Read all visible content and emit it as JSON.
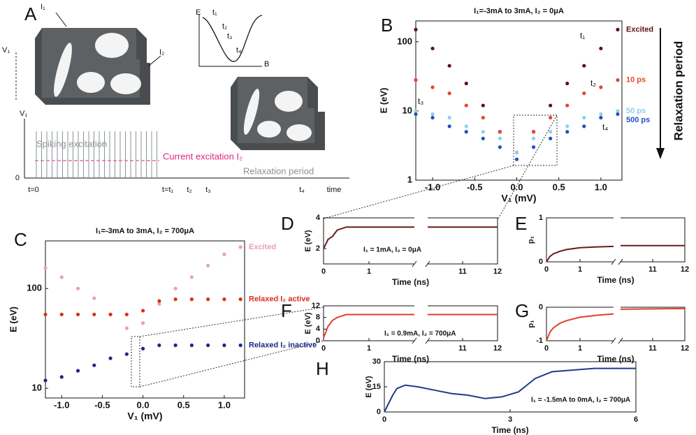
{
  "figure": {
    "panels": [
      "A",
      "B",
      "C",
      "D",
      "E",
      "F",
      "G",
      "H"
    ],
    "panel_a": {
      "current_1": "I₁",
      "current_2": "I₂",
      "voltage": "V₁",
      "energy_axis": "E",
      "field_axis": "B",
      "energy_times": [
        "t₁",
        "t₂",
        "t₃",
        "t₄"
      ],
      "spiking": "Spiking excitation",
      "current_excitation": "Current excitation I₂",
      "relaxation": "Relaxation period",
      "trace_axis": "V₁",
      "trace_zero": "0",
      "time_marks": [
        "t=0",
        "t=t₁",
        "t₂",
        "t₃",
        "t₄"
      ],
      "time_label": "time"
    }
  },
  "chart_data": [
    {
      "type": "scatter",
      "title": "I₁=-3mA to 3mA, I₂ = 0μA",
      "xlabel": "V₁ (mV)",
      "ylabel": "E (eV)",
      "log_y": true,
      "xlim": [
        -1.2,
        1.25
      ],
      "ylim": [
        1,
        200
      ],
      "xticks": [
        {
          "value": -1,
          "label": "-1.0"
        },
        -0.5,
        {
          "value": 0,
          "label": "0.0"
        },
        0.5,
        {
          "value": 1,
          "label": "1.0"
        }
      ],
      "yticks": [
        1,
        10,
        100
      ],
      "annotations": [
        "t₁",
        "t₂",
        "t₃",
        "t₄"
      ],
      "side_label": "Relaxation period",
      "x": [
        -1.2,
        -1.0,
        -0.8,
        -0.6,
        -0.4,
        -0.2,
        0,
        0.2,
        0.4,
        0.6,
        0.8,
        1.0,
        1.2
      ],
      "series": [
        {
          "name": "Excited",
          "color": "#5a1414",
          "values": [
            150,
            80,
            45,
            25,
            12,
            5,
            2.5,
            5,
            12,
            25,
            45,
            80,
            150
          ]
        },
        {
          "name": "10 ps",
          "color": "#e8452c",
          "values": [
            28,
            22,
            18,
            12,
            8,
            5,
            2.5,
            5,
            8,
            12,
            18,
            22,
            28
          ]
        },
        {
          "name": "50 ps",
          "color": "#8fd0e8",
          "values": [
            10,
            9,
            8,
            6,
            5,
            4,
            2.5,
            4,
            5,
            6,
            8,
            9,
            10
          ]
        },
        {
          "name": "500 ps",
          "color": "#2050c0",
          "values": [
            9,
            8,
            6,
            5,
            4,
            3,
            2,
            3,
            4,
            5,
            6,
            8,
            9
          ]
        }
      ]
    },
    {
      "type": "scatter",
      "title": "I₁=-3mA to 3mA, I₂ = 700μA",
      "xlabel": "V₁ (mV)",
      "ylabel": "E (eV)",
      "log_y": true,
      "xlim": [
        -1.2,
        1.25
      ],
      "ylim": [
        8,
        300
      ],
      "xticks": [
        {
          "value": -1,
          "label": "-1.0"
        },
        -0.5,
        {
          "value": 0,
          "label": "0.0"
        },
        0.5,
        {
          "value": 1,
          "label": "1.0"
        }
      ],
      "yticks": [
        10,
        100
      ],
      "x": [
        -1.2,
        -1.0,
        -0.8,
        -0.6,
        -0.4,
        -0.2,
        0,
        0.2,
        0.4,
        0.6,
        0.8,
        1.0,
        1.2
      ],
      "series": [
        {
          "name": "Excited",
          "color": "#e8a0b8",
          "values": [
            160,
            130,
            100,
            80,
            55,
            40,
            45,
            70,
            100,
            130,
            170,
            220,
            260
          ]
        },
        {
          "name": "Relaxed I₂ active",
          "color": "#d8301c",
          "values": [
            55,
            55,
            55,
            55,
            55,
            55,
            60,
            75,
            78,
            78,
            78,
            78,
            78
          ]
        },
        {
          "name": "Relaxed I₂ inactive",
          "color": "#1a2a8a",
          "values": [
            12,
            13,
            15,
            17,
            20,
            22,
            25,
            27,
            27,
            27,
            27,
            27,
            27
          ]
        }
      ]
    },
    {
      "type": "line",
      "xlabel": "Time (ns)",
      "ylabel": "E (eV)",
      "annotation": "I₁ = 1mA, I₂ = 0μA",
      "xlim": [
        0,
        12
      ],
      "xbreak": [
        2,
        10
      ],
      "ylim": [
        1,
        4
      ],
      "xticks": [
        0,
        1,
        11,
        12
      ],
      "yticks": [
        2,
        4
      ],
      "color": "#6b1a1a",
      "x": [
        0,
        0.05,
        0.1,
        0.2,
        0.3,
        0.5,
        1,
        1.5,
        2,
        10,
        11,
        12
      ],
      "values": [
        2,
        2.3,
        2.6,
        2.8,
        3.2,
        3.4,
        3.4,
        3.4,
        3.4,
        3.4,
        3.4,
        3.4
      ]
    },
    {
      "type": "line",
      "xlabel": "Time (ns)",
      "ylabel": "p₁",
      "xlim": [
        0,
        12
      ],
      "xbreak": [
        2,
        10
      ],
      "ylim": [
        0,
        1
      ],
      "xticks": [
        0,
        1,
        11,
        12
      ],
      "yticks": [
        0,
        1
      ],
      "color": "#6b1a1a",
      "x": [
        0,
        0.1,
        0.2,
        0.4,
        0.6,
        1,
        1.5,
        2,
        10,
        12
      ],
      "values": [
        0,
        0.12,
        0.18,
        0.24,
        0.28,
        0.32,
        0.34,
        0.35,
        0.37,
        0.37
      ]
    },
    {
      "type": "line",
      "xlabel": "Time (ns)",
      "ylabel": "E (eV)",
      "annotation": "I₁ = 0.9mA, I₂ = 700μA",
      "xlim": [
        0,
        12
      ],
      "xbreak": [
        2,
        10
      ],
      "ylim": [
        0,
        12
      ],
      "xticks": [
        0,
        1,
        11,
        12
      ],
      "yticks": [
        0,
        4,
        8,
        12
      ],
      "color": "#e0402a",
      "x": [
        0,
        0.05,
        0.1,
        0.15,
        0.2,
        0.3,
        0.4,
        0.5,
        1,
        2,
        10,
        12
      ],
      "values": [
        1,
        3,
        5,
        6,
        7,
        8,
        8.5,
        9,
        9,
        9,
        9,
        9
      ]
    },
    {
      "type": "line",
      "xlabel": "Time (ns)",
      "ylabel": "p₁",
      "xlim": [
        0,
        12
      ],
      "xbreak": [
        2,
        10
      ],
      "ylim": [
        -1,
        0
      ],
      "xticks": [
        0,
        1,
        11,
        12
      ],
      "yticks": [
        -1,
        0
      ],
      "color": "#e0402a",
      "x": [
        0,
        0.1,
        0.2,
        0.4,
        0.6,
        1,
        1.5,
        2,
        10,
        12
      ],
      "values": [
        -1,
        -0.75,
        -0.62,
        -0.48,
        -0.4,
        -0.3,
        -0.24,
        -0.2,
        -0.06,
        -0.04
      ]
    },
    {
      "type": "line",
      "xlabel": "Time (ns)",
      "ylabel": "E (eV)",
      "annotation": "I₁ = -1.5mA to 0mA, I₂ = 700μA",
      "xlim": [
        0,
        6
      ],
      "ylim": [
        0,
        30
      ],
      "xticks": [
        0,
        3,
        6
      ],
      "yticks": [
        0,
        15,
        30
      ],
      "color": "#1f3a8a",
      "x": [
        0,
        0.1,
        0.2,
        0.3,
        0.5,
        0.8,
        1.2,
        1.6,
        2,
        2.4,
        2.8,
        3.2,
        3.4,
        3.6,
        4,
        5,
        6
      ],
      "values": [
        0,
        5,
        10,
        14,
        16,
        15,
        13,
        11,
        10,
        8,
        9,
        12,
        16,
        20,
        24,
        26,
        26
      ]
    }
  ]
}
